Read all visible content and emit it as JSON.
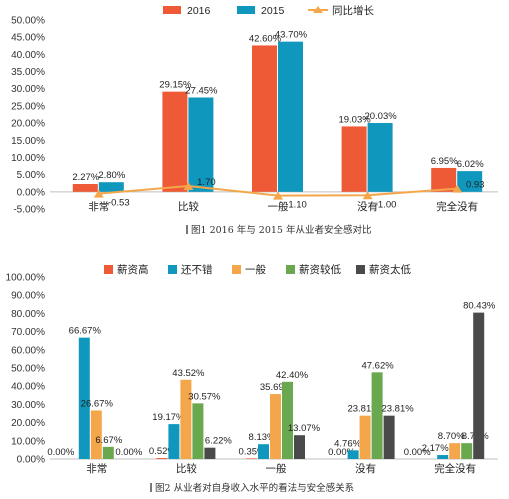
{
  "chart_data": [
    {
      "type": "bar",
      "caption": "图1 2016 年与 2015 年从业者安全感对比",
      "categories": [
        "非常",
        "比较",
        "一般",
        "没有",
        "完全没有"
      ],
      "series": [
        {
          "name": "2016",
          "kind": "bar",
          "color": "#ee5a36",
          "values": [
            2.27,
            29.15,
            42.6,
            19.03,
            6.95
          ],
          "labels": [
            "2.27%",
            "29.15%",
            "42.60%",
            "19.03%",
            "6.95%"
          ]
        },
        {
          "name": "2015",
          "kind": "bar",
          "color": "#0f97bd",
          "values": [
            2.8,
            27.45,
            43.7,
            20.03,
            6.02
          ],
          "labels": [
            "2.80%",
            "27.45%",
            "43.70%",
            "20.03%",
            "6.02%"
          ]
        },
        {
          "name": "同比增长",
          "kind": "line",
          "color": "#f4a64b",
          "values": [
            -0.53,
            1.7,
            -1.1,
            -1.0,
            0.93
          ],
          "labels": [
            "-0.53",
            "1.70",
            "-1.10",
            "-1.00",
            "0.93"
          ]
        }
      ],
      "yticks": [
        "-5.00%",
        "0.00%",
        "5.00%",
        "10.00%",
        "15.00%",
        "20.00%",
        "25.00%",
        "30.00%",
        "35.00%",
        "40.00%",
        "45.00%",
        "50.00%"
      ],
      "ylim": [
        -5,
        50
      ],
      "legend_position": "top"
    },
    {
      "type": "bar",
      "caption": "图2 从业者对自身收入水平的看法与安全感关系",
      "categories": [
        "非常",
        "比较",
        "一般",
        "没有",
        "完全没有"
      ],
      "series": [
        {
          "name": "薪资高",
          "color": "#ee5a36",
          "values": [
            0.0,
            0.52,
            0.35,
            0.0,
            0.0
          ],
          "labels": [
            "0.00%",
            "0.52%",
            "0.35%",
            "0.00%",
            "0.00%"
          ]
        },
        {
          "name": "还不错",
          "color": "#0f97bd",
          "values": [
            66.67,
            19.17,
            8.13,
            4.76,
            2.17
          ],
          "labels": [
            "66.67%",
            "19.17%",
            "8.13%",
            "4.76%",
            "2.17%"
          ]
        },
        {
          "name": "一般",
          "color": "#f4a64b",
          "values": [
            26.67,
            43.52,
            35.69,
            23.81,
            8.7
          ],
          "labels": [
            "26.67%",
            "43.52%",
            "35.69%",
            "23.81%",
            "8.70%"
          ]
        },
        {
          "name": "薪资较低",
          "color": "#6aa84f",
          "values": [
            6.67,
            30.57,
            42.4,
            47.62,
            8.7
          ],
          "labels": [
            "6.67%",
            "30.57%",
            "42.40%",
            "47.62%",
            "8.70%"
          ]
        },
        {
          "name": "薪资太低",
          "color": "#4a4a4a",
          "values": [
            0.0,
            6.22,
            13.07,
            23.81,
            80.43
          ],
          "labels": [
            "0.00%",
            "6.22%",
            "13.07%",
            "23.81%",
            "80.43%"
          ]
        }
      ],
      "yticks": [
        "0.00%",
        "10.00%",
        "20.00%",
        "30.00%",
        "40.00%",
        "50.00%",
        "60.00%",
        "70.00%",
        "80.00%",
        "90.00%",
        "100.00%"
      ],
      "ylim": [
        0,
        100
      ],
      "legend_position": "top"
    }
  ]
}
